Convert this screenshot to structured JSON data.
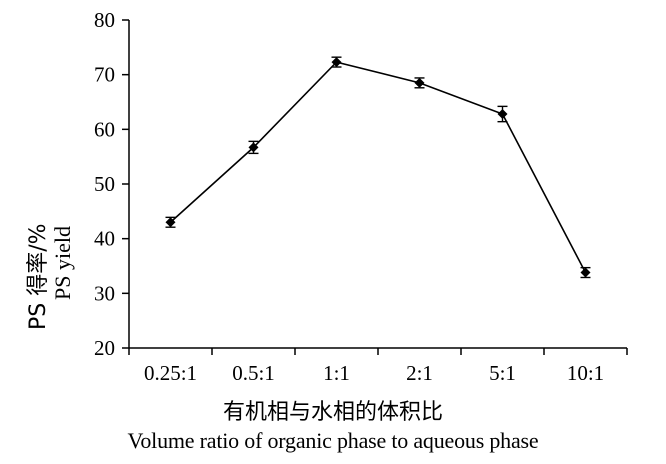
{
  "chart_data": {
    "type": "line",
    "categories": [
      "0.25:1",
      "0.5:1",
      "1:1",
      "2:1",
      "5:1",
      "10:1"
    ],
    "series": [
      {
        "values": [
          43.0,
          56.7,
          72.3,
          68.5,
          62.8,
          33.8
        ],
        "errors": [
          0.9,
          1.1,
          0.9,
          0.9,
          1.4,
          0.9
        ]
      }
    ],
    "ylim": [
      20,
      80
    ],
    "yticks": [
      20,
      30,
      40,
      50,
      60,
      70,
      80
    ],
    "ylabel_cn": "PS 得率/%",
    "ylabel_en": "PS yield",
    "xlabel_cn": "有机相与水相的体积比",
    "xlabel_en": "Volume ratio of organic phase to aqueous phase",
    "grid": false,
    "legend": "none",
    "line_color": "#000000",
    "marker": "diamond"
  }
}
